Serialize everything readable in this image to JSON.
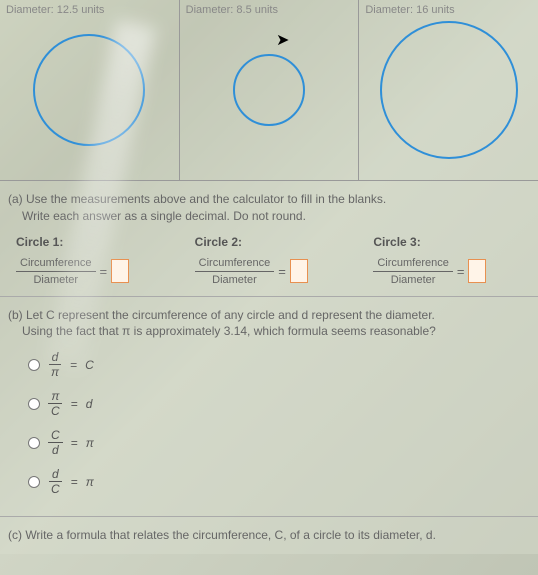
{
  "circles": [
    {
      "label": "Diameter: 12.5 units",
      "radius": 55,
      "stroke": "#2f8fd8"
    },
    {
      "label": "Diameter: 8.5 units",
      "radius": 35,
      "stroke": "#2f8fd8"
    },
    {
      "label": "Diameter: 16 units",
      "radius": 68,
      "stroke": "#2f8fd8"
    }
  ],
  "part_a": {
    "intro1": "(a) Use the measurements above and the calculator to fill in the blanks.",
    "intro2": "Write each answer as a single decimal. Do not round.",
    "blocks": [
      {
        "title": "Circle 1:",
        "num": "Circumference",
        "den": "Diameter"
      },
      {
        "title": "Circle 2:",
        "num": "Circumference",
        "den": "Diameter"
      },
      {
        "title": "Circle 3:",
        "num": "Circumference",
        "den": "Diameter"
      }
    ],
    "eq_sign": "=",
    "answer_box_border": "#e89050",
    "answer_box_bg": "#fff4e8"
  },
  "part_b": {
    "line1": "(b) Let C represent the circumference of any circle and d represent the diameter.",
    "line2": "Using the fact that π is approximately 3.14, which formula seems reasonable?",
    "options": [
      {
        "num": "d",
        "den": "π",
        "eq": "=",
        "rhs": "C"
      },
      {
        "num": "π",
        "den": "C",
        "eq": "=",
        "rhs": "d"
      },
      {
        "num": "C",
        "den": "d",
        "eq": "=",
        "rhs": "π"
      },
      {
        "num": "d",
        "den": "C",
        "eq": "=",
        "rhs": "π"
      }
    ]
  },
  "part_c": {
    "text": "(c) Write a formula that relates the circumference, C, of a circle to its diameter, d."
  }
}
